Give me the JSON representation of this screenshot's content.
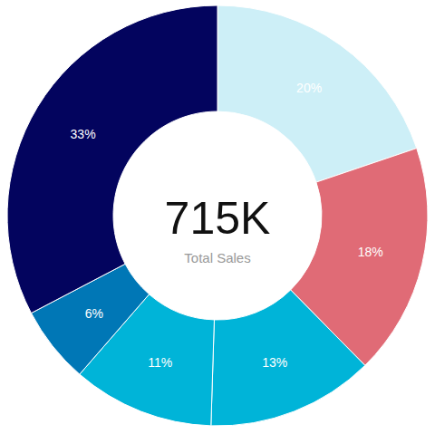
{
  "chart_data": {
    "type": "donut",
    "values": [
      20,
      18,
      13,
      11,
      6,
      33
    ],
    "value_labels": [
      "20%",
      "18%",
      "13%",
      "11%",
      "6%",
      "33%"
    ],
    "colors": [
      "#cdeff7",
      "#e06b76",
      "#00b4d8",
      "#00b4d8",
      "#0077b6",
      "#03045e"
    ],
    "data_labels": true,
    "center_value": "715K",
    "center_label": "Total Sales"
  }
}
